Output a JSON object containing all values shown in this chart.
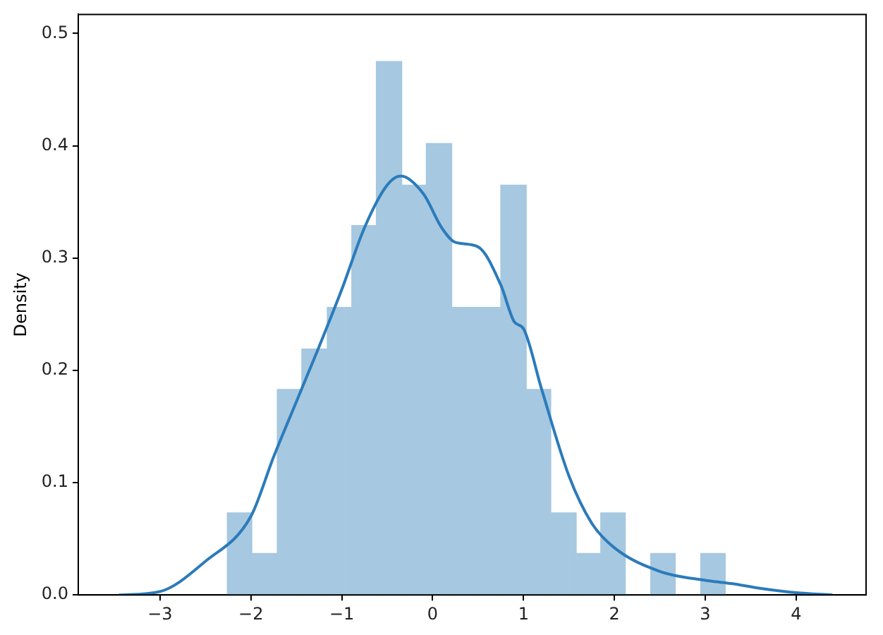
{
  "chart_data": {
    "type": "histogram",
    "ylabel": "Density",
    "series": [
      {
        "type": "histogram",
        "color": "#a6c8e0",
        "bins": [
          -2.26,
          -1.99,
          -1.71,
          -1.44,
          -1.16,
          -0.89,
          -0.62,
          -0.34,
          -0.07,
          0.21,
          0.48,
          0.75,
          1.03,
          1.3,
          1.58,
          1.85,
          2.12,
          2.4,
          2.67,
          2.95,
          3.22
        ],
        "values": [
          0.073,
          0.037,
          0.183,
          0.219,
          0.256,
          0.329,
          0.475,
          0.365,
          0.402,
          0.256,
          0.256,
          0.365,
          0.183,
          0.073,
          0.037,
          0.073,
          0,
          0.037,
          0,
          0.037
        ]
      },
      {
        "type": "line",
        "color": "#2b7bba",
        "x": [
          -3.45,
          -3.0,
          -2.5,
          -2.0,
          -1.75,
          -1.5,
          -1.25,
          -1.0,
          -0.75,
          -0.5,
          -0.35,
          -0.1,
          0.1,
          0.25,
          0.5,
          0.75,
          0.9,
          1.0,
          1.2,
          1.5,
          1.75,
          2.0,
          2.5,
          3.0,
          3.3,
          3.6,
          4.0,
          4.4
        ],
        "values": [
          0.0,
          0.003,
          0.03,
          0.07,
          0.123,
          0.172,
          0.221,
          0.272,
          0.327,
          0.365,
          0.373,
          0.357,
          0.327,
          0.314,
          0.31,
          0.276,
          0.243,
          0.237,
          0.183,
          0.106,
          0.064,
          0.042,
          0.021,
          0.013,
          0.01,
          0.006,
          0.002,
          0.0
        ]
      }
    ],
    "xlim": [
      -3.9,
      4.77
    ],
    "xticks": [
      {
        "value": -3,
        "label": "−3"
      },
      {
        "value": -2,
        "label": "−2"
      },
      {
        "value": -1,
        "label": "−1"
      },
      0,
      1,
      2,
      3,
      4
    ],
    "ylim": [
      0,
      0.517
    ],
    "yticks": [
      {
        "value": 0,
        "label": "0.0"
      },
      0.1,
      0.2,
      0.3,
      0.4,
      0.5
    ]
  }
}
